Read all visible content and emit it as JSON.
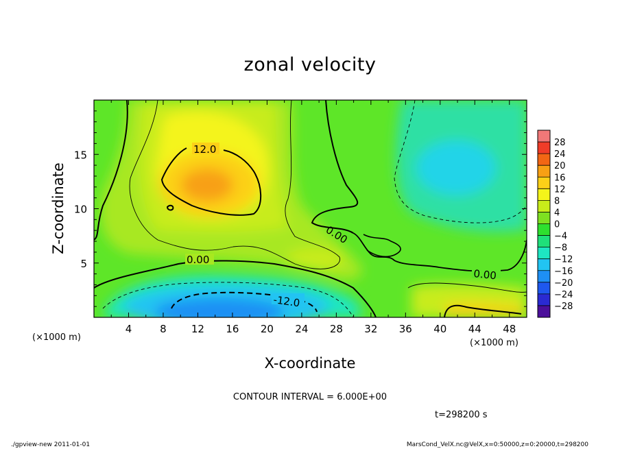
{
  "chart_data": {
    "type": "heatmap",
    "title": "zonal velocity",
    "xlabel": "X-coordinate",
    "ylabel": "Z-coordinate",
    "x_unit_left": "(×1000 m)",
    "x_unit_right": "(×1000 m)",
    "xlim": [
      0,
      50
    ],
    "ylim": [
      0,
      20
    ],
    "x_ticks": [
      4,
      8,
      12,
      16,
      20,
      24,
      28,
      32,
      36,
      40,
      44,
      48
    ],
    "y_ticks": [
      5,
      10,
      15
    ],
    "grid": false,
    "colorbar": {
      "placement": "right",
      "labels": [
        "28",
        "24",
        "20",
        "16",
        "12",
        "8",
        "4",
        "0",
        "−4",
        "−8",
        "−12",
        "−16",
        "−20",
        "−24",
        "−28"
      ],
      "levels": [
        -32,
        -28,
        -24,
        -20,
        -16,
        -12,
        -8,
        -4,
        0,
        4,
        8,
        12,
        16,
        20,
        24,
        28,
        32
      ],
      "colors": [
        "#4b0f9a",
        "#2a2ad2",
        "#1e58ee",
        "#1e8ff4",
        "#22c4f2",
        "#1ee6c2",
        "#1fe07a",
        "#2ee02e",
        "#7ee021",
        "#c8ec1a",
        "#f4f41a",
        "#fcd018",
        "#f8a014",
        "#f26614",
        "#f03c28",
        "#f07878"
      ]
    },
    "contour_labels": [
      "12.0",
      "0.00",
      "0.00",
      "0.00",
      "-12.0"
    ],
    "contour_interval_text": "CONTOUR INTERVAL = 6.000E+00",
    "time_text": "t=298200 s",
    "features": [
      {
        "kind": "max",
        "x": 13.5,
        "z": 12.0,
        "value": 15
      },
      {
        "kind": "min",
        "x": 16.0,
        "z": 1.0,
        "value": -15
      },
      {
        "kind": "min",
        "x": 40.0,
        "z": 14.0,
        "value": -9
      }
    ]
  },
  "footer": {
    "left": "./gpview-new  2011-01-01",
    "right": "MarsCond_VelX.nc@VelX,x=0:50000,z=0:20000,t=298200"
  }
}
